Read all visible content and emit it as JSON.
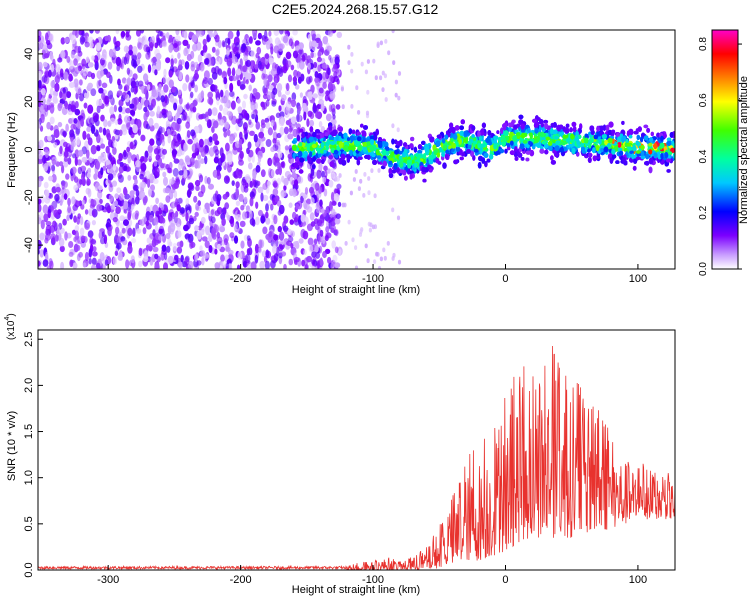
{
  "title": "C2E5.2024.268.15.57.G12",
  "chart_data": [
    {
      "type": "heatmap",
      "xlabel": "Height of straight line (km)",
      "ylabel": "Frequency (Hz)",
      "xlim": [
        -353,
        128
      ],
      "ylim": [
        -50,
        50
      ],
      "xticks": [
        -300,
        -200,
        -100,
        0,
        100
      ],
      "yticks": [
        -40,
        -20,
        0,
        20,
        40
      ],
      "grid": false,
      "noise_region_x": [
        -353,
        -125
      ],
      "signal_region_x": [
        -160,
        128
      ],
      "signal_ridge": {
        "x": [
          -160,
          -140,
          -120,
          -100,
          -90,
          -80,
          -70,
          -60,
          -50,
          -40,
          -30,
          -20,
          -10,
          0,
          20,
          40,
          60,
          80,
          100,
          128
        ],
        "y": [
          0,
          1,
          2,
          1,
          -2,
          -4,
          -5,
          -3,
          0,
          3,
          4,
          2,
          0,
          5,
          5,
          4,
          3,
          2,
          1,
          0
        ]
      },
      "colorbar": {
        "label": "Normalized spectral amplitude",
        "range": [
          0.0,
          0.85
        ],
        "ticks": [
          0.0,
          0.2,
          0.4,
          0.6,
          0.8
        ],
        "colormap": [
          "#ffffff",
          "#7b00ff",
          "#0000ff",
          "#00ffff",
          "#00ff00",
          "#ffff00",
          "#ff8000",
          "#ff0000",
          "#ff00ff"
        ]
      }
    },
    {
      "type": "line",
      "xlabel": "Height of straight line (km)",
      "ylabel": "SNR (10 * v/v)",
      "y_multiplier": "(x10",
      "y_multiplier_exp": "4",
      "y_multiplier_close": ")",
      "xlim": [
        -353,
        128
      ],
      "ylim": [
        0,
        2.6
      ],
      "xticks": [
        -300,
        -200,
        -100,
        0,
        100
      ],
      "yticks": [
        0.0,
        0.5,
        1.0,
        1.5,
        2.0,
        2.5
      ],
      "grid": false,
      "series": [
        {
          "color": "#e8322e",
          "envelope": {
            "x": [
              -353,
              -150,
              -120,
              -100,
              -90,
              -80,
              -70,
              -60,
              -50,
              -45,
              -40,
              -30,
              -20,
              -10,
              0,
              10,
              20,
              30,
              35,
              40,
              50,
              60,
              70,
              80,
              90,
              100,
              110,
              120,
              128
            ],
            "y_min": [
              0.0,
              0.0,
              0.0,
              0.0,
              0.0,
              0.0,
              0.0,
              0.0,
              0.02,
              0.05,
              0.05,
              0.1,
              0.1,
              0.15,
              0.2,
              0.3,
              0.35,
              0.35,
              0.35,
              0.35,
              0.35,
              0.4,
              0.4,
              0.45,
              0.5,
              0.5,
              0.55,
              0.55,
              0.55
            ],
            "y_max": [
              0.04,
              0.04,
              0.06,
              0.1,
              0.15,
              0.1,
              0.15,
              0.25,
              0.5,
              0.55,
              0.8,
              1.2,
              1.4,
              1.6,
              1.9,
              2.3,
              2.1,
              2.3,
              2.6,
              2.3,
              2.1,
              2.0,
              1.8,
              1.5,
              1.3,
              1.2,
              1.1,
              1.05,
              1.05
            ]
          }
        }
      ]
    }
  ]
}
